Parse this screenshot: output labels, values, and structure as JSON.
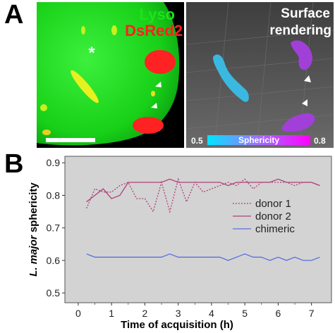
{
  "panelA": {
    "letter": "A",
    "left_image": {
      "label_lyso": "Lyso",
      "label_dsred": "DsRed2",
      "asterisk": "*"
    },
    "right_image": {
      "title_line1": "Surface",
      "title_line2": "rendering",
      "colorbar": {
        "label": "Sphericity",
        "min_label": "0.5",
        "max_label": "0.8",
        "color_low": "#00e5ff",
        "color_high": "#ff00ff"
      }
    },
    "colors": {
      "lyso": "#1ee21e",
      "dsred": "#ff2020",
      "cyan_parasite": "#3ab8e0",
      "magenta_parasite": "#b040e0"
    }
  },
  "panelB": {
    "letter": "B"
  },
  "chart_data": {
    "type": "line",
    "ylabel_italic": "L. major",
    "ylabel_rest": " sphericity",
    "xlabel": "Time of acquisition (h)",
    "xlim": [
      -0.4,
      7.6
    ],
    "ylim": [
      0.47,
      0.92
    ],
    "xticks": [
      0,
      1,
      2,
      3,
      4,
      5,
      6,
      7
    ],
    "yticks": [
      0.5,
      0.6,
      0.7,
      0.8,
      0.9
    ],
    "grid": false,
    "background": "#d3d3d3",
    "legend_position": "right",
    "series": [
      {
        "name": "donor 1",
        "color": "#b0407a",
        "dash": "2,2",
        "x": [
          0.25,
          0.5,
          0.75,
          1.0,
          1.25,
          1.5,
          1.75,
          2.0,
          2.25,
          2.5,
          2.75,
          3.0,
          3.25,
          3.5,
          3.75,
          4.0,
          4.25,
          4.5,
          4.75,
          5.0,
          5.25,
          5.5,
          5.75,
          6.0,
          6.25,
          6.5,
          6.75,
          7.0,
          7.25
        ],
        "values": [
          0.76,
          0.82,
          0.81,
          0.81,
          0.83,
          0.84,
          0.79,
          0.79,
          0.75,
          0.84,
          0.75,
          0.85,
          0.78,
          0.84,
          0.81,
          0.82,
          0.83,
          0.84,
          0.83,
          0.85,
          0.82,
          0.84,
          0.84,
          0.84,
          0.84,
          0.83,
          0.84,
          0.84,
          0.83
        ]
      },
      {
        "name": "donor 2",
        "color": "#b0407a",
        "dash": "",
        "x": [
          0.25,
          0.5,
          0.75,
          1.0,
          1.25,
          1.5,
          1.75,
          2.0,
          2.25,
          2.5,
          2.75,
          3.0,
          3.25,
          3.5,
          3.75,
          4.0,
          4.25,
          4.5,
          4.75,
          5.0,
          5.25,
          5.5,
          5.75,
          6.0,
          6.25,
          6.5,
          6.75,
          7.0,
          7.25
        ],
        "values": [
          0.78,
          0.8,
          0.82,
          0.79,
          0.8,
          0.84,
          0.84,
          0.84,
          0.84,
          0.84,
          0.85,
          0.84,
          0.84,
          0.84,
          0.84,
          0.84,
          0.84,
          0.83,
          0.84,
          0.84,
          0.84,
          0.84,
          0.84,
          0.85,
          0.84,
          0.84,
          0.84,
          0.84,
          0.83
        ]
      },
      {
        "name": "chimeric",
        "color": "#5a6ee0",
        "dash": "",
        "x": [
          0.25,
          0.5,
          0.75,
          1.0,
          1.25,
          1.5,
          1.75,
          2.0,
          2.25,
          2.5,
          2.75,
          3.0,
          3.25,
          3.5,
          3.75,
          4.0,
          4.25,
          4.5,
          4.75,
          5.0,
          5.25,
          5.5,
          5.75,
          6.0,
          6.25,
          6.5,
          6.75,
          7.0,
          7.25
        ],
        "values": [
          0.62,
          0.61,
          0.61,
          0.61,
          0.61,
          0.61,
          0.61,
          0.61,
          0.61,
          0.61,
          0.62,
          0.61,
          0.61,
          0.61,
          0.61,
          0.61,
          0.61,
          0.6,
          0.61,
          0.62,
          0.61,
          0.61,
          0.6,
          0.61,
          0.6,
          0.61,
          0.6,
          0.6,
          0.61
        ]
      }
    ]
  }
}
